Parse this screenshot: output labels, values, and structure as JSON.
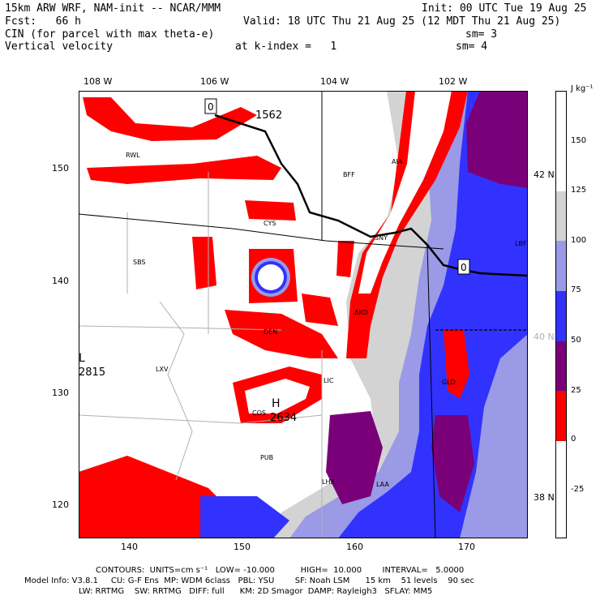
{
  "header": {
    "line1_left": "15km ARW WRF, NAM-init -- NCAR/MMM",
    "line1_right": "Init: 00 UTC Tue 19 Aug 25",
    "line2_left": "Fcst:   66 h",
    "line2_right": "Valid: 18 UTC Thu 21 Aug 25 (12 MDT Thu 21 Aug 25)",
    "line3_left": "CIN (for parcel with max theta-e)",
    "line3_right": "sm= 3",
    "line4_left": "Vertical velocity",
    "line4_mid": "at k-index =   1",
    "line4_right": "sm= 4"
  },
  "map": {
    "top_lon_labels": [
      "108 W",
      "106 W",
      "104 W",
      "102 W"
    ],
    "right_lat_labels": [
      "42 N",
      "40 N",
      "38 N"
    ],
    "left_grid_labels": [
      "150",
      "140",
      "130",
      "120"
    ],
    "bottom_grid_labels": [
      "140",
      "150",
      "160",
      "170"
    ],
    "stations": [
      "RWL",
      "BFF",
      "AIA",
      "CYS",
      "SNY",
      "SBS",
      "LBF",
      "AKO",
      "DEN",
      "LXV",
      "LIC",
      "COS",
      "PUB",
      "LHX",
      "LAA",
      "GLD"
    ],
    "high_label": "H",
    "high_value": "2634",
    "low_label": "L",
    "low_value": "2815",
    "contour_top_value": "1562",
    "marker_label": "0"
  },
  "colorbar": {
    "units": "J kg⁻¹",
    "levels": [
      "150",
      "125",
      "100",
      "75",
      "50",
      "25",
      "0",
      "-25"
    ],
    "colors": [
      "#ffffff",
      "#d3d3d3",
      "#9a9ae6",
      "#3232ff",
      "#7a007a",
      "#ff0000",
      "#ffffff",
      "#ffffff"
    ]
  },
  "footer": {
    "contours": "CONTOURS:  UNITS=cm s⁻¹   LOW= -10.000          HIGH=  10.000        INTERVAL=   5.0000",
    "model_info_1": "Model Info: V3.8.1     CU: G-F Ens  MP: WDM 6class   PBL: YSU        SF: Noah LSM      15 km    51 levels    90 sec",
    "model_info_2": "LW: RRTMG    SW: RRTMG   DIFF: full      KM: 2D Smagor  DAMP: Rayleigh3   SFLAY: MM5"
  }
}
